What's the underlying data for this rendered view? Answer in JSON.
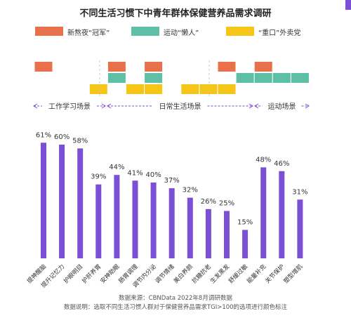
{
  "title": "不同生活习惯下中青年群体保健营养品需求调研",
  "legend": [
    {
      "label": "新熬夜“冠军”",
      "color": "#e8704a"
    },
    {
      "label": "运动“懒人”",
      "color": "#5cbfa6"
    },
    {
      "label": "“重口”外卖党",
      "color": "#f5c518"
    }
  ],
  "scenes": [
    {
      "label": "工作学习场景"
    },
    {
      "label": "日常生活场景"
    },
    {
      "label": "运动场景"
    }
  ],
  "chart_data": {
    "type": "bar",
    "categories": [
      "提神醒脑",
      "提升记忆力",
      "护眼明目",
      "护肝养胃",
      "安神助眠",
      "肠胃调理",
      "调节内分泌",
      "调节情绪",
      "美白养颜",
      "抗糖抗老",
      "生发黑发",
      "舒缓过敏",
      "能量补充",
      "关节保护",
      "塑型增肌"
    ],
    "values": [
      61,
      60,
      58,
      39,
      44,
      41,
      40,
      37,
      32,
      26,
      25,
      15,
      48,
      46,
      31
    ],
    "value_labels": [
      "61%",
      "60%",
      "58%",
      "39%",
      "44%",
      "41%",
      "40%",
      "37%",
      "32%",
      "26%",
      "25%",
      "15%",
      "48%",
      "46%",
      "31%"
    ],
    "ylim": [
      0,
      70
    ],
    "bar_color": "#7b4fd6",
    "highlight_rows": [
      [
        1,
        0,
        0,
        0,
        1,
        0,
        1,
        0,
        0,
        0,
        1,
        0,
        1,
        0,
        0
      ],
      [
        0,
        0,
        0,
        0,
        1,
        0,
        1,
        0,
        0,
        0,
        0,
        1,
        1,
        1,
        1
      ],
      [
        0,
        0,
        0,
        1,
        0,
        1,
        1,
        0,
        1,
        1,
        1,
        0,
        0,
        0,
        0
      ]
    ]
  },
  "footer": {
    "source": "数据来源：CBNData 2022年8月调研数据",
    "note": "数据说明：选取不同生活习惯人群对于保健营养品需求TGI>100的选项进行颜色标注"
  }
}
